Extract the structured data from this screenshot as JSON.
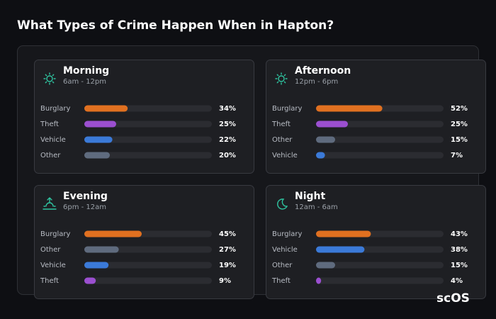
{
  "title": "What Types of Crime Happen When in Hapton?",
  "watermark": "scOS",
  "chart_data": [
    {
      "type": "bar",
      "orientation": "horizontal",
      "title": "Morning",
      "subtitle": "6am - 12pm",
      "categories": [
        "Burglary",
        "Theft",
        "Vehicle",
        "Other"
      ],
      "values": [
        34,
        25,
        22,
        20
      ],
      "value_labels": [
        "34%",
        "25%",
        "22%",
        "20%"
      ],
      "colors": [
        "#e07020",
        "#9b4fd0",
        "#3b7ad8",
        "#5f6b7e"
      ],
      "xlim": [
        0,
        100
      ]
    },
    {
      "type": "bar",
      "orientation": "horizontal",
      "title": "Afternoon",
      "subtitle": "12pm - 6pm",
      "categories": [
        "Burglary",
        "Theft",
        "Other",
        "Vehicle"
      ],
      "values": [
        52,
        25,
        15,
        7
      ],
      "value_labels": [
        "52%",
        "25%",
        "15%",
        "7%"
      ],
      "colors": [
        "#e07020",
        "#9b4fd0",
        "#5f6b7e",
        "#3b7ad8"
      ],
      "xlim": [
        0,
        100
      ]
    },
    {
      "type": "bar",
      "orientation": "horizontal",
      "title": "Evening",
      "subtitle": "6pm - 12am",
      "categories": [
        "Burglary",
        "Other",
        "Vehicle",
        "Theft"
      ],
      "values": [
        45,
        27,
        19,
        9
      ],
      "value_labels": [
        "45%",
        "27%",
        "19%",
        "9%"
      ],
      "colors": [
        "#e07020",
        "#5f6b7e",
        "#3b7ad8",
        "#9b4fd0"
      ],
      "xlim": [
        0,
        100
      ]
    },
    {
      "type": "bar",
      "orientation": "horizontal",
      "title": "Night",
      "subtitle": "12am - 6am",
      "categories": [
        "Burglary",
        "Vehicle",
        "Other",
        "Theft"
      ],
      "values": [
        43,
        38,
        15,
        4
      ],
      "value_labels": [
        "43%",
        "38%",
        "15%",
        "4%"
      ],
      "colors": [
        "#e07020",
        "#3b7ad8",
        "#5f6b7e",
        "#9b4fd0"
      ],
      "xlim": [
        0,
        100
      ]
    }
  ]
}
